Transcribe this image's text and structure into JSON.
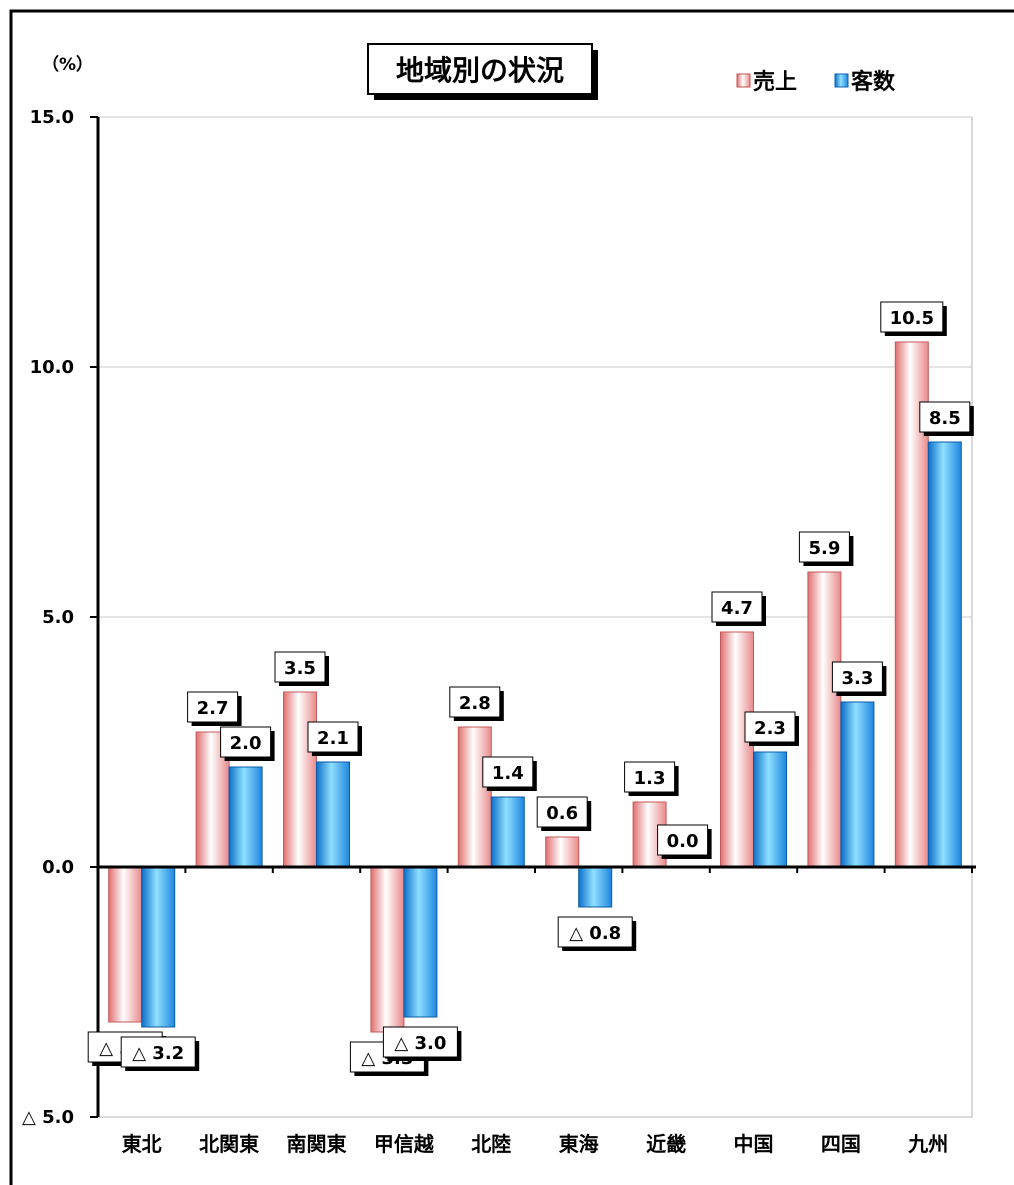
{
  "chart_data": {
    "type": "bar",
    "title": "地域別の状況",
    "unit_label": "（%）",
    "categories": [
      "東北",
      "北関東",
      "南関東",
      "甲信越",
      "北陸",
      "東海",
      "近畿",
      "中国",
      "四国",
      "九州"
    ],
    "series": [
      {
        "name": "売上",
        "color": "#f4aaaa",
        "values": [
          -3.1,
          2.7,
          3.5,
          -3.3,
          2.8,
          0.6,
          1.3,
          4.7,
          5.9,
          10.5
        ],
        "labels": [
          "△ 3.1",
          "2.7",
          "3.5",
          "△ 3.3",
          "2.8",
          "0.6",
          "1.3",
          "4.7",
          "5.9",
          "10.5"
        ]
      },
      {
        "name": "客数",
        "color": "#3aa9ee",
        "values": [
          -3.2,
          2.0,
          2.1,
          -3.0,
          1.4,
          -0.8,
          0.0,
          2.3,
          3.3,
          8.5
        ],
        "labels": [
          "△ 3.2",
          "2.0",
          "2.1",
          "△ 3.0",
          "1.4",
          "△ 0.8",
          "0.0",
          "2.3",
          "3.3",
          "8.5"
        ]
      }
    ],
    "ylim": [
      -5,
      15
    ],
    "yticks": [
      15,
      10,
      5,
      0,
      -5
    ],
    "ytick_labels": [
      "15.0",
      "10.0",
      "5.0",
      "0.0",
      "△ 5.0"
    ],
    "grid": true,
    "legend_position": "top-right"
  }
}
